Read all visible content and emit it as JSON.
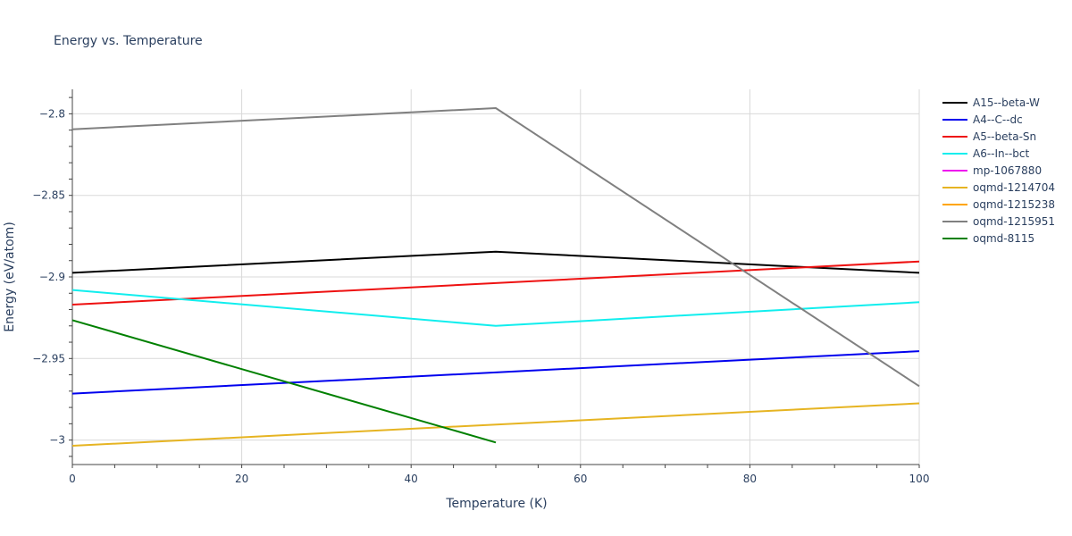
{
  "chart_data": {
    "type": "line",
    "title": "Energy vs. Temperature",
    "xlabel": "Temperature (K)",
    "ylabel": "Energy (eV/atom)",
    "xlim": [
      0,
      100
    ],
    "ylim": [
      -3.015,
      -2.785
    ],
    "x_ticks": [
      0,
      20,
      40,
      60,
      80,
      100
    ],
    "y_ticks": [
      -3.0,
      -2.95,
      -2.9,
      -2.85,
      -2.8
    ],
    "y_tick_labels": [
      "−3",
      "−2.95",
      "−2.9",
      "−2.85",
      "−2.8"
    ],
    "x_tick_labels": [
      "0",
      "20",
      "40",
      "60",
      "80",
      "100"
    ],
    "grid": true,
    "legend_position": "right",
    "series": [
      {
        "name": "A15--beta-W",
        "color": "#000000",
        "x": [
          0,
          50,
          100
        ],
        "y": [
          -2.8975,
          -2.8845,
          -2.8975
        ]
      },
      {
        "name": "A4--C--dc",
        "color": "#0000ee",
        "x": [
          0,
          100
        ],
        "y": [
          -2.9715,
          -2.9455
        ]
      },
      {
        "name": "A5--beta-Sn",
        "color": "#ee1111",
        "x": [
          0,
          100
        ],
        "y": [
          -2.917,
          -2.8905
        ]
      },
      {
        "name": "A6--In--bct",
        "color": "#11eeee",
        "x": [
          0,
          50,
          100
        ],
        "y": [
          -2.908,
          -2.93,
          -2.9155
        ]
      },
      {
        "name": "mp-1067880",
        "color": "#ee11ee",
        "x": [],
        "y": []
      },
      {
        "name": "oqmd-1214704",
        "color": "#e6b422",
        "x": [
          0,
          100
        ],
        "y": [
          -3.0035,
          -2.9775
        ]
      },
      {
        "name": "oqmd-1215238",
        "color": "#ffa500",
        "x": [],
        "y": []
      },
      {
        "name": "oqmd-1215951",
        "color": "#808080",
        "x": [
          0,
          50,
          100
        ],
        "y": [
          -2.8095,
          -2.7965,
          -2.967
        ]
      },
      {
        "name": "oqmd-8115",
        "color": "#008000",
        "x": [
          0,
          50
        ],
        "y": [
          -2.9265,
          -3.0015
        ]
      }
    ]
  }
}
